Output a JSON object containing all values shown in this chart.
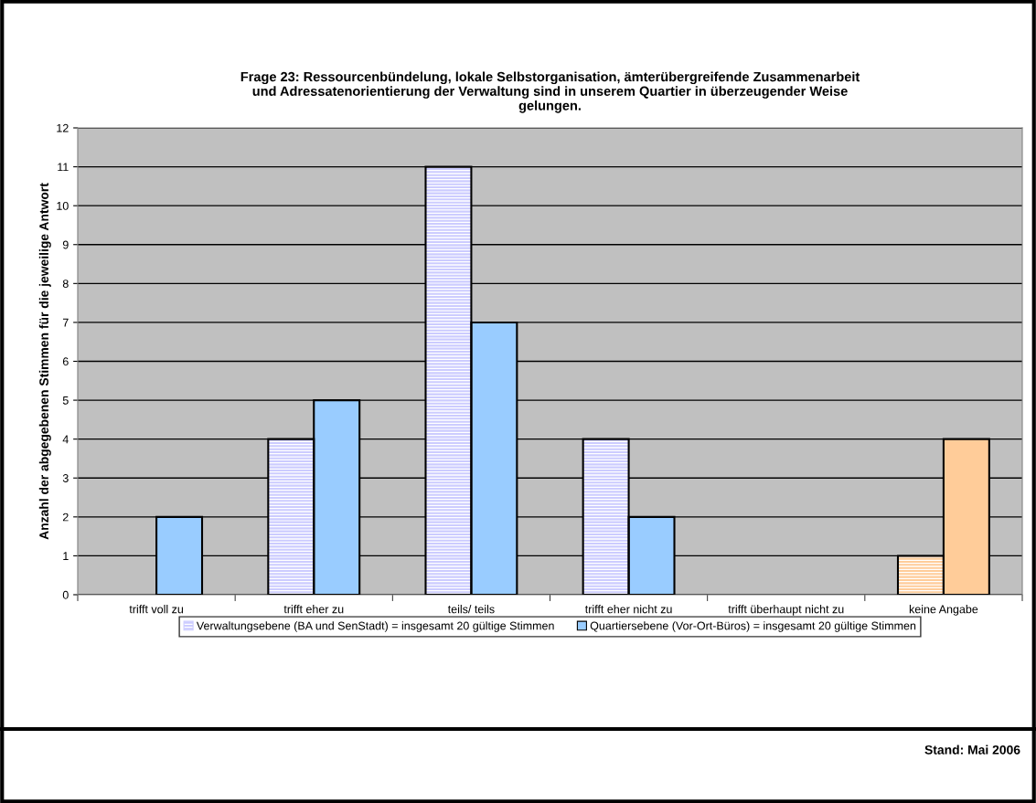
{
  "chart_data": {
    "type": "bar",
    "title": "Frage 23: Ressourcenbündelung, lokale Selbstorganisation, ämterübergreifende Zusammenarbeit\nund Adressatenorientierung der Verwaltung sind in unserem Quartier in überzeugender Weise\ngelungen.",
    "ylabel": "Anzahl der abgegebenen Stimmen für die jeweilige Antwort",
    "categories": [
      "trifft voll zu",
      "trifft eher zu",
      "teils/ teils",
      "trifft eher nicht zu",
      "trifft überhaupt nicht zu",
      "keine Angabe"
    ],
    "series": [
      {
        "name": "Verwaltungsebene (BA und SenStadt) = insgesamt 20 gültige Stimmen",
        "color": "#ccccff",
        "colors": [
          "#ccccff",
          "#ccccff",
          "#ccccff",
          "#ccccff",
          "#ccccff",
          "#ffcc99"
        ],
        "values": [
          0,
          4,
          11,
          4,
          0,
          1
        ]
      },
      {
        "name": "Quartiersebene (Vor-Ort-Büros) = insgesamt 20 gültige Stimmen",
        "color": "#99ccff",
        "colors": [
          "#99ccff",
          "#99ccff",
          "#99ccff",
          "#99ccff",
          "#99ccff",
          "#ffcc99"
        ],
        "values": [
          2,
          5,
          7,
          2,
          0,
          4
        ]
      }
    ],
    "ylim": [
      0,
      12
    ],
    "yticks": [
      0,
      1,
      2,
      3,
      4,
      5,
      6,
      7,
      8,
      9,
      10,
      11,
      12
    ],
    "grid": "y",
    "legend": "bottom",
    "annotations": [
      "Stand: Mai 2006"
    ]
  }
}
